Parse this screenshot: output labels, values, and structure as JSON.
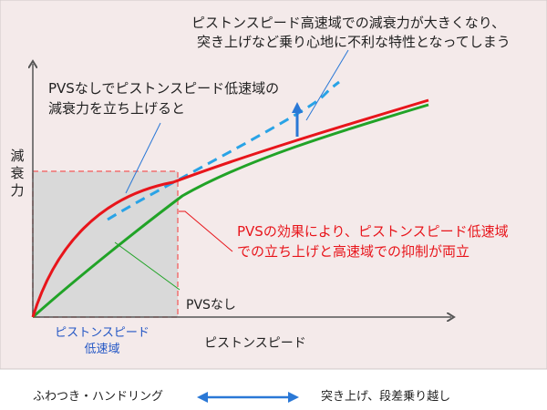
{
  "annotations": {
    "top_right_line1": "ピストンスピード高速域での減衰力が大きくなり、",
    "top_right_line2": "突き上げなど乗り心地に不利な特性となってしまう",
    "pvs_none_line1": "PVSなしでピストンスピード低速域の",
    "pvs_none_line2": "減衰力を立ち上げると",
    "pvs_effect_line1": "PVSの効果により、ピストンスピード低速域",
    "pvs_effect_line2": "での立ち上げと高速域での抑制が両立",
    "pvs_none_label": "PVSなし"
  },
  "axes": {
    "y_label_chars": [
      "減",
      "衰",
      "力"
    ],
    "x_label": "ピストンスピード",
    "low_speed_region_line1": "ピストンスピード",
    "low_speed_region_line2": "低速域"
  },
  "footer": {
    "left": "ふわつき・ハンドリング",
    "right": "突き上げ、段差乗り越し"
  },
  "colors": {
    "panel_bg": "#f4eaea",
    "region_fill": "#d9d9d9",
    "region_border": "#f07070",
    "red_curve": "#e8151b",
    "green_curve": "#21a327",
    "dashed_curve": "#29a3e6",
    "arrow_blue": "#2a78d6",
    "region_text": "#2457c5",
    "red_text": "#e8151b"
  }
}
